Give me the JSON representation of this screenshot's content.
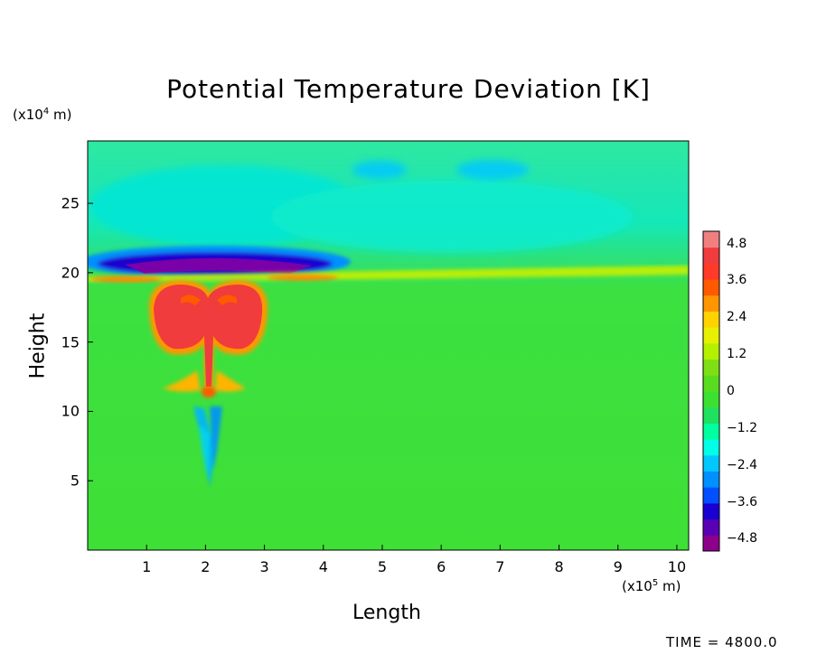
{
  "chart_data": {
    "type": "heatmap",
    "title": "Potential Temperature Deviation [K]",
    "xlabel": "Length",
    "ylabel": "Height",
    "x_unit": {
      "prefix": "(x10",
      "exp": "5",
      "suffix": " m)"
    },
    "y_unit": {
      "prefix": "(x10",
      "exp": "4",
      "suffix": " m)"
    },
    "xlim": [
      0,
      10.2
    ],
    "ylim": [
      0,
      29.5
    ],
    "x_ticks": [
      "1",
      "2",
      "3",
      "4",
      "5",
      "6",
      "7",
      "8",
      "9",
      "10"
    ],
    "y_ticks": [
      "5",
      "10",
      "15",
      "20",
      "25"
    ],
    "colorbar": {
      "range": [
        -5.2,
        5.2
      ],
      "labels": [
        "4.8",
        "3.6",
        "2.4",
        "1.2",
        "0",
        "−1.2",
        "−2.4",
        "−3.6",
        "−4.8"
      ],
      "label_values": [
        4.8,
        3.6,
        2.4,
        1.2,
        0,
        -1.2,
        -2.4,
        -3.6,
        -4.8
      ],
      "colors": [
        "#8c008c",
        "#5a00b4",
        "#1a00d0",
        "#0050ff",
        "#0090ff",
        "#00c8ff",
        "#00ffe6",
        "#00ffa0",
        "#20e060",
        "#3ce030",
        "#5adc1e",
        "#7ee014",
        "#b4f000",
        "#e6f000",
        "#ffd200",
        "#ff9600",
        "#ff5a00",
        "#ff3a28",
        "#f03c3c",
        "#f08080"
      ]
    },
    "features": [
      {
        "name": "cold-layer",
        "x_range": [
          1.1,
          3.4
        ],
        "y_range": [
          20.3,
          21.2
        ],
        "value": -5.0
      },
      {
        "name": "warm-plume",
        "x_range": [
          1.1,
          3.0
        ],
        "y_range": [
          14.8,
          19.6
        ],
        "value": 4.0
      },
      {
        "name": "warm-stem",
        "x_range": [
          1.9,
          2.1
        ],
        "y_range": [
          11.5,
          15.0
        ],
        "value": 3.6
      },
      {
        "name": "warm-band-20km",
        "x_range": [
          0,
          10.2
        ],
        "y_range": [
          19.7,
          20.3
        ],
        "value": 1.2
      }
    ]
  },
  "footer": {
    "time": "TIME = 4800.0"
  }
}
